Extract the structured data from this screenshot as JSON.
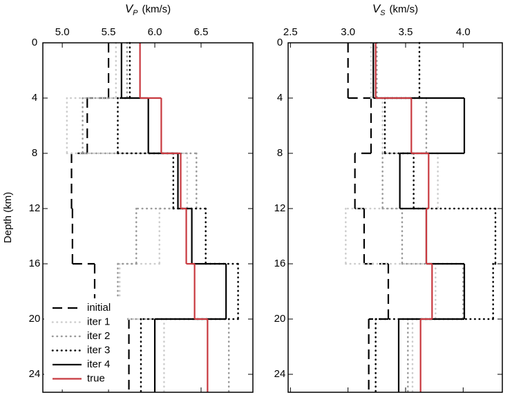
{
  "chart_data": [
    {
      "type": "step",
      "ylabel": "Depth (km)",
      "xlabel_symbol": "V",
      "xlabel_subscript": "P",
      "xlabel_unit": "(km/s)",
      "xlim": [
        4.79,
        7.06
      ],
      "xticks": [
        {
          "value": 5,
          "label": "5.0"
        },
        5.5,
        {
          "value": 6,
          "label": "6.0"
        },
        6.5
      ],
      "ylim": [
        0,
        25.3
      ],
      "yticks": [
        0,
        4,
        8,
        12,
        16,
        20,
        24
      ],
      "y_inverted": true,
      "layer_tops": [
        0,
        4,
        8,
        12,
        16,
        20
      ],
      "legend": "lower left",
      "series": [
        {
          "name": "initial",
          "color": "#000000",
          "style": "dashed",
          "values": [
            5.5,
            5.27,
            5.1,
            5.11,
            5.35,
            5.72
          ]
        },
        {
          "name": "iter 1",
          "color": "#cccccc",
          "style": "dotted",
          "values": [
            5.58,
            5.05,
            6.35,
            6.05,
            5.62,
            6.1
          ]
        },
        {
          "name": "iter 2",
          "color": "#999999",
          "style": "dotted",
          "values": [
            5.7,
            5.22,
            6.45,
            5.8,
            5.6,
            6.8
          ]
        },
        {
          "name": "iter 3",
          "color": "#000000",
          "style": "dotted",
          "values": [
            5.73,
            5.6,
            6.2,
            6.55,
            6.9,
            5.85
          ]
        },
        {
          "name": "iter 4",
          "color": "#000000",
          "style": "solid",
          "values": [
            5.64,
            5.93,
            6.25,
            6.4,
            6.77,
            6.0
          ]
        },
        {
          "name": "true",
          "color": "#c8383e",
          "style": "solid",
          "values": [
            5.84,
            6.07,
            6.28,
            6.34,
            6.43,
            6.57
          ]
        }
      ]
    },
    {
      "type": "step",
      "xlabel_symbol": "V",
      "xlabel_subscript": "S",
      "xlabel_unit": "(km/s)",
      "xlim": [
        2.48,
        4.34
      ],
      "xticks": [
        2.5,
        {
          "value": 3,
          "label": "3.0"
        },
        3.5,
        {
          "value": 4,
          "label": "4.0"
        }
      ],
      "ylim": [
        0,
        25.3
      ],
      "yticks": [
        0,
        4,
        8,
        12,
        16,
        20,
        24
      ],
      "y_inverted": true,
      "layer_tops": [
        0,
        4,
        8,
        12,
        16,
        20
      ],
      "series": [
        {
          "values": [
            3.0,
            3.2,
            3.06,
            3.14,
            3.35,
            3.18
          ]
        },
        {
          "values": [
            3.2,
            3.3,
            3.78,
            2.98,
            3.76,
            3.56
          ]
        },
        {
          "values": [
            3.25,
            3.68,
            3.3,
            3.47,
            4.0,
            3.52
          ]
        },
        {
          "values": [
            3.62,
            3.32,
            3.57,
            4.28,
            4.26,
            3.24
          ]
        },
        {
          "values": [
            3.22,
            4.01,
            3.45,
            3.68,
            4.01,
            3.44
          ]
        },
        {
          "values": [
            3.24,
            3.55,
            3.7,
            3.68,
            3.73,
            3.63
          ]
        }
      ]
    }
  ]
}
